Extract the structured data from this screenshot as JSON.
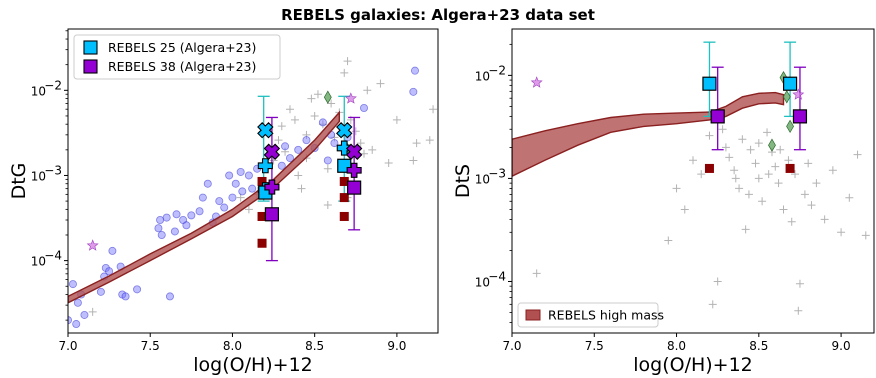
{
  "suptitle": "REBELS galaxies: Algera+23 data set",
  "colors": {
    "model_band": "#b05050",
    "model_edge": "#8b2020",
    "rebels25": "#00bfff",
    "rebels38": "#9400d3",
    "dark_red_point": "#8b0000",
    "scatter_blue": "#6f6fff",
    "grey_cross": "#808080",
    "green_diamond": "#5aa05a",
    "errbar_cyan": "#20c0c0",
    "errbar_purple": "#8000c0"
  },
  "chart_data": [
    {
      "type": "scatter",
      "panel": "left",
      "xlabel": "log(O/H)+12",
      "ylabel": "DtG",
      "xlim": [
        7.0,
        9.25
      ],
      "ylim_log10": [
        -4.85,
        -1.28
      ],
      "yscale": "log",
      "xticks": [
        7.0,
        7.5,
        8.0,
        8.5,
        9.0
      ],
      "xtick_labels": [
        "7.0",
        "7.5",
        "8.0",
        "8.5",
        "9.0"
      ],
      "yticks_log10": [
        -4,
        -3,
        -2
      ],
      "ytick_labels": [
        "10",
        "10",
        "10"
      ],
      "ytick_exps": [
        "−4",
        "−3",
        "−2"
      ],
      "legend": {
        "placement": "upper-left",
        "entries": [
          {
            "label": "REBELS 25 (Algera+23)",
            "color": "#00bfff"
          },
          {
            "label": "REBELS 38 (Algera+23)",
            "color": "#9400d3"
          }
        ]
      },
      "model_band": {
        "x": [
          7.0,
          7.25,
          7.5,
          7.75,
          8.0,
          8.25,
          8.5,
          8.65
        ],
        "y_low": [
          3.2e-05,
          5.6e-05,
          0.0001,
          0.00018,
          0.00033,
          0.00072,
          0.002,
          0.0043
        ],
        "y_high": [
          3.8e-05,
          6.6e-05,
          0.00012,
          0.00021,
          0.0004,
          0.0009,
          0.0026,
          0.0055
        ]
      },
      "blue_points": [
        [
          7.0,
          2e-05
        ],
        [
          7.03,
          5.3e-05
        ],
        [
          7.05,
          1.8e-05
        ],
        [
          7.06,
          3.2e-05
        ],
        [
          7.08,
          4e-05
        ],
        [
          7.1,
          2.3e-05
        ],
        [
          7.2,
          4.3e-05
        ],
        [
          7.22,
          6.5e-05
        ],
        [
          7.23,
          8.2e-05
        ],
        [
          7.25,
          7.5e-05
        ],
        [
          7.27,
          0.00013
        ],
        [
          7.32,
          8.5e-05
        ],
        [
          7.33,
          4e-05
        ],
        [
          7.35,
          3.8e-05
        ],
        [
          7.42,
          4.6e-05
        ],
        [
          7.55,
          0.00024
        ],
        [
          7.56,
          0.0003
        ],
        [
          7.57,
          0.0002
        ],
        [
          7.6,
          0.00032
        ],
        [
          7.62,
          3.8e-05
        ],
        [
          7.65,
          0.00022
        ],
        [
          7.66,
          0.00035
        ],
        [
          7.7,
          0.0003
        ],
        [
          7.72,
          0.00026
        ],
        [
          7.75,
          0.00034
        ],
        [
          7.8,
          0.00038
        ],
        [
          7.82,
          0.00055
        ],
        [
          7.85,
          0.0008
        ],
        [
          7.88,
          0.00028
        ],
        [
          7.9,
          0.00033
        ],
        [
          7.92,
          0.0005
        ],
        [
          7.95,
          0.00042
        ],
        [
          7.98,
          0.001
        ],
        [
          8.0,
          0.00055
        ],
        [
          8.02,
          0.0008
        ],
        [
          8.05,
          0.0011
        ],
        [
          8.06,
          0.00065
        ],
        [
          8.1,
          0.001
        ],
        [
          8.12,
          0.0007
        ],
        [
          8.15,
          0.0012
        ],
        [
          8.3,
          0.0013
        ],
        [
          8.32,
          0.0022
        ],
        [
          8.35,
          0.0016
        ],
        [
          8.4,
          0.002
        ],
        [
          8.45,
          0.0026
        ],
        [
          8.5,
          0.0021
        ],
        [
          8.55,
          0.0042
        ],
        [
          8.58,
          0.0015
        ],
        [
          8.6,
          0.003
        ],
        [
          8.62,
          0.0024
        ],
        [
          8.7,
          0.0028
        ],
        [
          8.75,
          0.002
        ],
        [
          8.8,
          0.0062
        ],
        [
          9.1,
          0.0096
        ],
        [
          9.11,
          0.017
        ]
      ],
      "grey_crosses": [
        [
          7.15,
          2.5e-05
        ],
        [
          8.05,
          0.00055
        ],
        [
          8.1,
          0.0004
        ],
        [
          8.15,
          0.0006
        ],
        [
          8.2,
          0.0008
        ],
        [
          8.25,
          0.0015
        ],
        [
          8.28,
          0.0026
        ],
        [
          8.3,
          0.0038
        ],
        [
          8.32,
          0.0019
        ],
        [
          8.35,
          0.006
        ],
        [
          8.38,
          0.0045
        ],
        [
          8.4,
          0.001
        ],
        [
          8.42,
          0.0007
        ],
        [
          8.45,
          0.003
        ],
        [
          8.48,
          0.008
        ],
        [
          8.5,
          0.005
        ],
        [
          8.52,
          0.009
        ],
        [
          8.55,
          0.004
        ],
        [
          8.58,
          0.0012
        ],
        [
          8.6,
          0.007
        ],
        [
          8.62,
          0.0028
        ],
        [
          8.65,
          0.0055
        ],
        [
          8.68,
          0.016
        ],
        [
          8.7,
          0.022
        ],
        [
          8.72,
          0.0045
        ],
        [
          8.75,
          0.0033
        ],
        [
          8.78,
          0.0024
        ],
        [
          8.8,
          0.0018
        ],
        [
          8.82,
          0.01
        ],
        [
          8.85,
          0.002
        ],
        [
          8.9,
          0.012
        ],
        [
          8.95,
          0.0014
        ],
        [
          9.0,
          0.0045
        ],
        [
          9.1,
          0.0015
        ],
        [
          9.12,
          0.0024
        ],
        [
          9.2,
          0.0026
        ],
        [
          9.22,
          0.006
        ],
        [
          8.58,
          0.00045
        ],
        [
          8.7,
          0.00055
        ],
        [
          8.45,
          0.0016
        ]
      ],
      "magenta_stars": [
        [
          7.15,
          0.00015
        ],
        [
          8.72,
          0.008
        ]
      ],
      "green_diamonds": [
        [
          8.58,
          0.0083
        ],
        [
          8.7,
          0.002
        ]
      ],
      "rebels25_points": [
        [
          8.2,
          0.0034
        ],
        [
          8.2,
          0.0013
        ],
        [
          8.2,
          0.00068
        ],
        [
          8.2,
          0.00063
        ],
        [
          8.68,
          0.0034
        ],
        [
          8.68,
          0.0021
        ],
        [
          8.68,
          0.0013
        ]
      ],
      "rebels38_points": [
        [
          8.24,
          0.0019
        ],
        [
          8.24,
          0.00073
        ],
        [
          8.24,
          0.00035
        ],
        [
          8.74,
          0.0019
        ],
        [
          8.74,
          0.00115
        ],
        [
          8.74,
          0.00072
        ]
      ],
      "dark_red_points": [
        [
          8.18,
          0.00016
        ],
        [
          8.18,
          0.00033
        ],
        [
          8.18,
          0.00085
        ],
        [
          8.68,
          0.00033
        ],
        [
          8.68,
          0.00085
        ],
        [
          8.68,
          0.00055
        ]
      ],
      "errorbars": [
        {
          "x": 8.19,
          "low": 0.0005,
          "high": 0.0085,
          "color": "#20c0c0"
        },
        {
          "x": 8.68,
          "low": 0.0005,
          "high": 0.0085,
          "color": "#20c0c0"
        },
        {
          "x": 8.24,
          "low": 0.0001,
          "high": 0.0048,
          "color": "#8000c0"
        },
        {
          "x": 8.74,
          "low": 0.00023,
          "high": 0.0048,
          "color": "#8000c0"
        }
      ]
    },
    {
      "type": "scatter",
      "panel": "right",
      "xlabel": "log(O/H)+12",
      "ylabel": "DtS",
      "xlim": [
        7.0,
        9.2
      ],
      "ylim_log10": [
        -4.5,
        -1.55
      ],
      "yscale": "log",
      "xticks": [
        7.0,
        7.5,
        8.0,
        8.5,
        9.0
      ],
      "xtick_labels": [
        "7.0",
        "7.5",
        "8.0",
        "8.5",
        "9.0"
      ],
      "yticks_log10": [
        -4,
        -3,
        -2
      ],
      "ytick_labels": [
        "10",
        "10",
        "10"
      ],
      "ytick_exps": [
        "−4",
        "−3",
        "−2"
      ],
      "legend": {
        "placement": "lower-left",
        "entries": [
          {
            "label": "REBELS high mass",
            "color": "#b05050"
          }
        ]
      },
      "model_band": {
        "x": [
          7.0,
          7.2,
          7.4,
          7.6,
          7.8,
          8.0,
          8.2,
          8.3,
          8.4,
          8.5,
          8.6,
          8.65
        ],
        "y_low": [
          0.00105,
          0.0015,
          0.0021,
          0.0028,
          0.0032,
          0.0034,
          0.0037,
          0.004,
          0.0048,
          0.0053,
          0.0054,
          0.0052
        ],
        "y_high": [
          0.0024,
          0.0029,
          0.0034,
          0.0039,
          0.0042,
          0.0043,
          0.0044,
          0.005,
          0.0062,
          0.0067,
          0.0068,
          0.0065
        ]
      },
      "grey_crosses": [
        [
          7.15,
          0.00012
        ],
        [
          7.95,
          0.00025
        ],
        [
          8.0,
          0.0008
        ],
        [
          8.05,
          0.0005
        ],
        [
          8.1,
          0.0015
        ],
        [
          8.15,
          0.0011
        ],
        [
          8.2,
          0.0026
        ],
        [
          8.22,
          6e-05
        ],
        [
          8.25,
          0.0001
        ],
        [
          8.28,
          0.003
        ],
        [
          8.3,
          0.002
        ],
        [
          8.32,
          0.0016
        ],
        [
          8.35,
          0.0012
        ],
        [
          8.38,
          0.0008
        ],
        [
          8.4,
          0.0024
        ],
        [
          8.42,
          0.00032
        ],
        [
          8.45,
          0.0019
        ],
        [
          8.48,
          0.0014
        ],
        [
          8.5,
          0.001
        ],
        [
          8.52,
          0.0006
        ],
        [
          8.55,
          0.0028
        ],
        [
          8.58,
          0.0018
        ],
        [
          8.6,
          0.0013
        ],
        [
          8.62,
          0.0009
        ],
        [
          8.65,
          0.0005
        ],
        [
          8.68,
          0.0015
        ],
        [
          8.7,
          0.00038
        ],
        [
          8.72,
          0.0011
        ],
        [
          8.75,
          9.5e-05
        ],
        [
          8.78,
          0.0007
        ],
        [
          8.8,
          0.0014
        ],
        [
          8.82,
          0.00055
        ],
        [
          8.85,
          0.0009
        ],
        [
          8.9,
          0.0004
        ],
        [
          8.95,
          0.0012
        ],
        [
          9.0,
          0.0003
        ],
        [
          9.05,
          0.00065
        ],
        [
          9.1,
          0.0017
        ],
        [
          9.15,
          0.00028
        ],
        [
          8.5,
          0.0022
        ],
        [
          8.56,
          0.0011
        ],
        [
          8.63,
          0.0019
        ],
        [
          8.44,
          0.0007
        ],
        [
          8.36,
          0.001
        ],
        [
          8.74,
          5.2e-05
        ]
      ],
      "magenta_stars": [
        [
          7.15,
          0.0085
        ],
        [
          8.74,
          0.0065
        ]
      ],
      "green_diamonds": [
        [
          8.58,
          0.0021
        ],
        [
          8.65,
          0.0095
        ],
        [
          8.67,
          0.0062
        ],
        [
          8.69,
          0.0032
        ]
      ],
      "rebels25_points": [
        [
          8.2,
          0.0083
        ],
        [
          8.69,
          0.0083
        ]
      ],
      "rebels38_points": [
        [
          8.25,
          0.004
        ],
        [
          8.75,
          0.004
        ]
      ],
      "dark_red_points": [
        [
          8.2,
          0.00125
        ],
        [
          8.69,
          0.00125
        ]
      ],
      "errorbars": [
        {
          "x": 8.2,
          "low": 0.004,
          "high": 0.021,
          "color": "#20c0c0"
        },
        {
          "x": 8.69,
          "low": 0.004,
          "high": 0.021,
          "color": "#20c0c0"
        },
        {
          "x": 8.25,
          "low": 0.0019,
          "high": 0.012,
          "color": "#8000c0"
        },
        {
          "x": 8.75,
          "low": 0.0019,
          "high": 0.012,
          "color": "#8000c0"
        }
      ]
    }
  ]
}
